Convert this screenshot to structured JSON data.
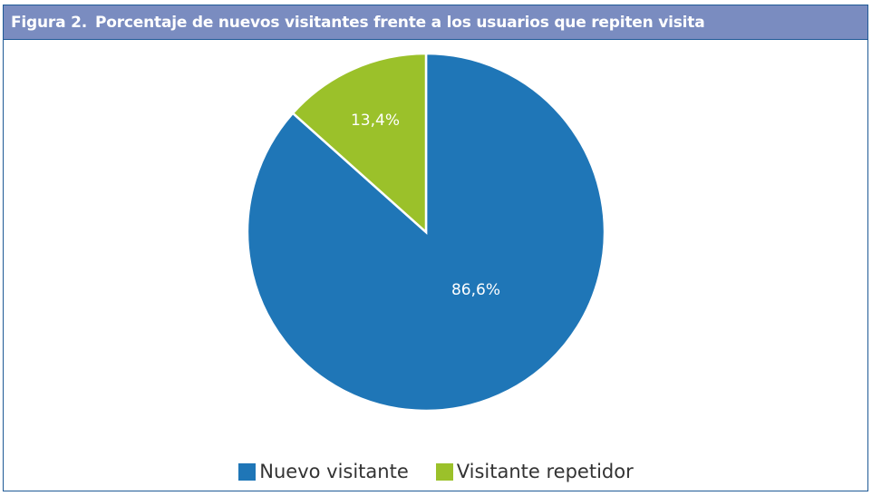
{
  "header": {
    "figure_label": "Figura 2.",
    "title": "Porcentaje de nuevos visitantes frente a los usuarios que repiten visita"
  },
  "colors": {
    "header_bg": "#7a8cc0",
    "border": "#1f5a96",
    "nuevo": "#1f76b7",
    "repetidor": "#9bc12a"
  },
  "legend": [
    {
      "label": "Nuevo visitante",
      "color": "#1f76b7"
    },
    {
      "label": "Visitante repetidor",
      "color": "#9bc12a"
    }
  ],
  "labels": {
    "nuevo": "86,6%",
    "repetidor": "13,4%"
  },
  "chart_data": {
    "type": "pie",
    "title": "Figura 2. Porcentaje de nuevos visitantes frente a los usuarios que repiten visita",
    "categories": [
      "Nuevo visitante",
      "Visitante repetidor"
    ],
    "values": [
      86.6,
      13.4
    ],
    "value_labels": [
      "86,6%",
      "13,4%"
    ],
    "colors": [
      "#1f76b7",
      "#9bc12a"
    ],
    "legend_position": "bottom",
    "start_angle": "12 o'clock, clockwise"
  }
}
